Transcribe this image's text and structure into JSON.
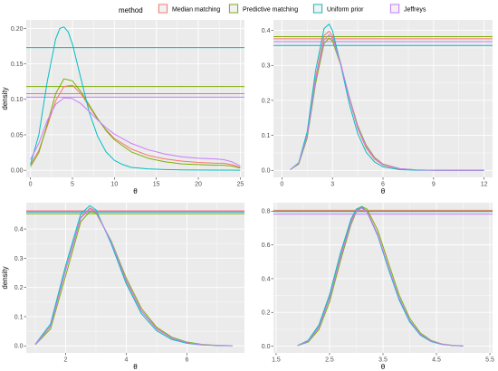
{
  "legend": {
    "title": "method",
    "position": "top",
    "items": [
      {
        "label": "Median matching",
        "color": "#F8766D"
      },
      {
        "label": "Predictive matching",
        "color": "#7CAE00"
      },
      {
        "label": "Uniform prior",
        "color": "#00BFC4"
      },
      {
        "label": "Jeffreys",
        "color": "#C77CFF"
      }
    ]
  },
  "chart_data": [
    {
      "type": "line",
      "panel": "top-left",
      "xlabel": "θ",
      "ylabel": "density",
      "xlim": [
        -0.5,
        25.5
      ],
      "ylim": [
        -0.01,
        0.212
      ],
      "xticks": [
        0,
        5,
        10,
        15,
        20,
        25
      ],
      "yticks": [
        0.0,
        0.05,
        0.1,
        0.15,
        0.2
      ],
      "ytick_labels": [
        "0.00",
        "0.05",
        "0.10",
        "0.15",
        "0.20"
      ],
      "grid": true,
      "hlines": [
        {
          "series": "Median matching",
          "y": 0.108
        },
        {
          "series": "Predictive matching",
          "y": 0.118
        },
        {
          "series": "Uniform prior",
          "y": 0.173
        },
        {
          "series": "Jeffreys",
          "y": 0.103
        }
      ],
      "series": [
        {
          "name": "Median matching",
          "x": [
            0,
            1,
            2,
            3,
            4,
            5,
            6,
            7,
            8,
            9,
            10,
            12,
            14,
            16,
            18,
            20,
            22,
            23,
            24,
            25
          ],
          "y": [
            0.008,
            0.028,
            0.062,
            0.098,
            0.118,
            0.12,
            0.108,
            0.09,
            0.072,
            0.057,
            0.045,
            0.03,
            0.021,
            0.016,
            0.013,
            0.011,
            0.01,
            0.01,
            0.008,
            0.004
          ]
        },
        {
          "name": "Predictive matching",
          "x": [
            0,
            1,
            2,
            3,
            4,
            5,
            6,
            7,
            8,
            9,
            10,
            12,
            14,
            16,
            18,
            20,
            22,
            23,
            24,
            25
          ],
          "y": [
            0.005,
            0.025,
            0.065,
            0.108,
            0.129,
            0.126,
            0.111,
            0.092,
            0.073,
            0.056,
            0.043,
            0.026,
            0.017,
            0.012,
            0.009,
            0.008,
            0.007,
            0.007,
            0.006,
            0.003
          ]
        },
        {
          "name": "Uniform prior",
          "x": [
            0,
            1,
            2,
            3,
            3.5,
            4,
            4.5,
            5,
            6,
            7,
            8,
            9,
            10,
            11,
            12,
            14,
            16,
            18,
            20,
            22,
            25
          ],
          "y": [
            0.008,
            0.05,
            0.125,
            0.185,
            0.2,
            0.202,
            0.195,
            0.178,
            0.13,
            0.082,
            0.048,
            0.026,
            0.014,
            0.008,
            0.004,
            0.002,
            0.001,
            0.0005,
            0.0003,
            0.0002,
            0.0001
          ]
        },
        {
          "name": "Jeffreys",
          "x": [
            0,
            1,
            2,
            3,
            4,
            5,
            6,
            7,
            8,
            9,
            10,
            12,
            14,
            16,
            18,
            20,
            22,
            23,
            24,
            25
          ],
          "y": [
            0.015,
            0.038,
            0.07,
            0.093,
            0.102,
            0.101,
            0.094,
            0.083,
            0.071,
            0.06,
            0.051,
            0.038,
            0.029,
            0.023,
            0.019,
            0.017,
            0.016,
            0.015,
            0.012,
            0.006
          ]
        }
      ]
    },
    {
      "type": "line",
      "panel": "top-right",
      "xlabel": "θ",
      "ylabel": "",
      "xlim": [
        -0.5,
        12.5
      ],
      "ylim": [
        -0.02,
        0.43
      ],
      "xticks": [
        0,
        3,
        6,
        9,
        12
      ],
      "yticks": [
        0.0,
        0.1,
        0.2,
        0.3,
        0.4
      ],
      "ytick_labels": [
        "0.0",
        "0.1",
        "0.2",
        "0.3",
        "0.4"
      ],
      "grid": true,
      "hlines": [
        {
          "series": "Median matching",
          "y": 0.376
        },
        {
          "series": "Predictive matching",
          "y": 0.382
        },
        {
          "series": "Uniform prior",
          "y": 0.357
        },
        {
          "series": "Jeffreys",
          "y": 0.368
        }
      ],
      "series": [
        {
          "name": "Median matching",
          "x": [
            0.5,
            1,
            1.5,
            2,
            2.5,
            2.8,
            3,
            3.5,
            4,
            4.5,
            5,
            5.5,
            6,
            7,
            8,
            9,
            10,
            11,
            12
          ],
          "y": [
            0.002,
            0.02,
            0.1,
            0.265,
            0.385,
            0.398,
            0.385,
            0.305,
            0.205,
            0.12,
            0.064,
            0.032,
            0.015,
            0.004,
            0.001,
            0.0004,
            0.0002,
            0.0001,
            0.0001
          ]
        },
        {
          "name": "Predictive matching",
          "x": [
            0.5,
            1,
            1.5,
            2,
            2.5,
            2.8,
            3,
            3.5,
            4,
            4.5,
            5,
            5.5,
            6,
            7,
            8,
            9,
            10,
            11,
            12
          ],
          "y": [
            0.002,
            0.018,
            0.092,
            0.248,
            0.362,
            0.378,
            0.37,
            0.3,
            0.21,
            0.128,
            0.072,
            0.037,
            0.018,
            0.005,
            0.0015,
            0.0005,
            0.0002,
            0.0001,
            0.0001
          ]
        },
        {
          "name": "Uniform prior",
          "x": [
            0.5,
            1,
            1.5,
            2,
            2.5,
            2.8,
            3,
            3.5,
            4,
            4.5,
            5,
            5.5,
            6,
            7,
            8,
            9,
            10,
            11,
            12
          ],
          "y": [
            0.002,
            0.022,
            0.11,
            0.285,
            0.405,
            0.418,
            0.4,
            0.3,
            0.19,
            0.105,
            0.052,
            0.024,
            0.01,
            0.002,
            0.0005,
            0.0002,
            0.0001,
            0.0001,
            0.0001
          ]
        },
        {
          "name": "Jeffreys",
          "x": [
            0.5,
            1,
            1.5,
            2,
            2.5,
            2.8,
            3,
            3.5,
            4,
            4.5,
            5,
            5.5,
            6,
            7,
            8,
            9,
            10,
            11,
            12
          ],
          "y": [
            0.002,
            0.02,
            0.098,
            0.258,
            0.372,
            0.388,
            0.378,
            0.303,
            0.208,
            0.124,
            0.068,
            0.035,
            0.017,
            0.005,
            0.0015,
            0.0005,
            0.0002,
            0.0001,
            0.0001
          ]
        }
      ]
    },
    {
      "type": "line",
      "panel": "bottom-left",
      "xlabel": "θ",
      "ylabel": "density",
      "xlim": [
        0.7,
        7.9
      ],
      "ylim": [
        -0.024,
        0.49
      ],
      "xticks": [
        2,
        4,
        6
      ],
      "yticks": [
        0.0,
        0.1,
        0.2,
        0.3,
        0.4
      ],
      "ytick_labels": [
        "0.0",
        "0.1",
        "0.2",
        "0.3",
        "0.4"
      ],
      "grid": true,
      "hlines": [
        {
          "series": "Median matching",
          "y": 0.462
        },
        {
          "series": "Predictive matching",
          "y": 0.452
        },
        {
          "series": "Uniform prior",
          "y": 0.458
        },
        {
          "series": "Jeffreys",
          "y": 0.46
        }
      ],
      "series": [
        {
          "name": "Median matching",
          "x": [
            1,
            1.5,
            2,
            2.5,
            2.8,
            3,
            3.5,
            4,
            4.5,
            5,
            5.5,
            6,
            6.5,
            7,
            7.5
          ],
          "y": [
            0.005,
            0.068,
            0.262,
            0.44,
            0.472,
            0.462,
            0.355,
            0.22,
            0.118,
            0.058,
            0.026,
            0.011,
            0.004,
            0.0015,
            0.0005
          ]
        },
        {
          "name": "Predictive matching",
          "x": [
            1,
            1.5,
            2,
            2.5,
            2.8,
            3,
            3.5,
            4,
            4.5,
            5,
            5.5,
            6,
            6.5,
            7,
            7.5
          ],
          "y": [
            0.004,
            0.058,
            0.24,
            0.425,
            0.46,
            0.455,
            0.36,
            0.232,
            0.128,
            0.064,
            0.03,
            0.013,
            0.005,
            0.002,
            0.0007
          ]
        },
        {
          "name": "Uniform prior",
          "x": [
            1,
            1.5,
            2,
            2.5,
            2.8,
            3,
            3.5,
            4,
            4.5,
            5,
            5.5,
            6,
            6.5,
            7,
            7.5
          ],
          "y": [
            0.006,
            0.075,
            0.275,
            0.452,
            0.48,
            0.466,
            0.35,
            0.212,
            0.11,
            0.052,
            0.022,
            0.009,
            0.003,
            0.001,
            0.0004
          ]
        },
        {
          "name": "Jeffreys",
          "x": [
            1,
            1.5,
            2,
            2.5,
            2.8,
            3,
            3.5,
            4,
            4.5,
            5,
            5.5,
            6,
            6.5,
            7,
            7.5
          ],
          "y": [
            0.005,
            0.066,
            0.258,
            0.437,
            0.469,
            0.46,
            0.357,
            0.224,
            0.12,
            0.06,
            0.027,
            0.011,
            0.004,
            0.0015,
            0.0005
          ]
        }
      ]
    },
    {
      "type": "line",
      "panel": "bottom-right",
      "xlabel": "θ",
      "ylabel": "",
      "xlim": [
        1.45,
        5.55
      ],
      "ylim": [
        -0.04,
        0.85
      ],
      "xticks": [
        1.5,
        2.5,
        3.5,
        4.5,
        5.5
      ],
      "xtick_labels": [
        "1.5",
        "2.5",
        "3.5",
        "4.5",
        "5.5"
      ],
      "yticks": [
        0.0,
        0.2,
        0.4,
        0.6,
        0.8
      ],
      "ytick_labels": [
        "0.0",
        "0.2",
        "0.4",
        "0.6",
        "0.8"
      ],
      "grid": true,
      "hlines": [
        {
          "series": "Median matching",
          "y": 0.805
        },
        {
          "series": "Predictive matching",
          "y": 0.8
        },
        {
          "series": "Uniform prior",
          "y": 0.798
        },
        {
          "series": "Jeffreys",
          "y": 0.782
        }
      ],
      "series": [
        {
          "name": "Median matching",
          "x": [
            1.9,
            2.1,
            2.3,
            2.5,
            2.7,
            2.9,
            3.0,
            3.1,
            3.2,
            3.4,
            3.6,
            3.8,
            4.0,
            4.2,
            4.4,
            4.6,
            4.8,
            5.0
          ],
          "y": [
            0.004,
            0.03,
            0.115,
            0.29,
            0.53,
            0.74,
            0.805,
            0.825,
            0.8,
            0.665,
            0.47,
            0.285,
            0.15,
            0.07,
            0.03,
            0.011,
            0.004,
            0.0015
          ]
        },
        {
          "name": "Predictive matching",
          "x": [
            1.9,
            2.1,
            2.3,
            2.5,
            2.7,
            2.9,
            3.0,
            3.1,
            3.2,
            3.4,
            3.6,
            3.8,
            4.0,
            4.2,
            4.4,
            4.6,
            4.8,
            5.0
          ],
          "y": [
            0.003,
            0.024,
            0.098,
            0.262,
            0.5,
            0.72,
            0.795,
            0.828,
            0.812,
            0.688,
            0.495,
            0.305,
            0.165,
            0.078,
            0.034,
            0.013,
            0.005,
            0.002
          ]
        },
        {
          "name": "Uniform prior",
          "x": [
            1.9,
            2.1,
            2.3,
            2.5,
            2.7,
            2.9,
            3.0,
            3.1,
            3.2,
            3.4,
            3.6,
            3.8,
            4.0,
            4.2,
            4.4,
            4.6,
            4.8,
            5.0
          ],
          "y": [
            0.004,
            0.034,
            0.125,
            0.305,
            0.548,
            0.752,
            0.812,
            0.826,
            0.795,
            0.655,
            0.458,
            0.275,
            0.143,
            0.065,
            0.027,
            0.01,
            0.0035,
            0.0012
          ]
        },
        {
          "name": "Jeffreys",
          "x": [
            1.9,
            2.1,
            2.3,
            2.5,
            2.7,
            2.9,
            3.0,
            3.1,
            3.2,
            3.4,
            3.6,
            3.8,
            4.0,
            4.2,
            4.4,
            4.6,
            4.8,
            5.0
          ],
          "y": [
            0.004,
            0.028,
            0.11,
            0.282,
            0.52,
            0.73,
            0.798,
            0.818,
            0.794,
            0.662,
            0.47,
            0.287,
            0.152,
            0.071,
            0.031,
            0.011,
            0.004,
            0.0015
          ]
        }
      ]
    }
  ]
}
